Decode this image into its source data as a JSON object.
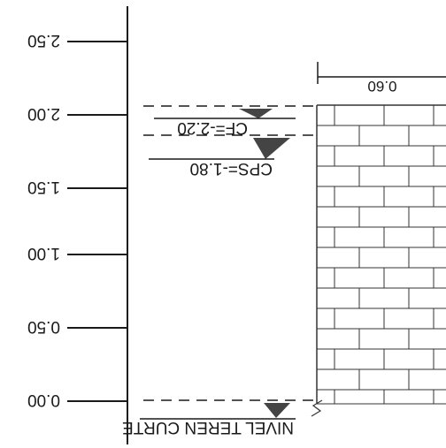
{
  "scale_labels": [
    "0.00",
    "0.50",
    "1.00",
    "1.50",
    "2.00",
    "2.50"
  ],
  "wall_width_label": "0.60",
  "markers": {
    "nivel_teren": "NIVEL TEREN CURTE",
    "cps": "CPS=-1.80",
    "cf": "CF=-2.20"
  },
  "colors": {
    "ink": "#1a1a1a",
    "marker_fill": "#444444",
    "brick_line": "#333333",
    "paper": "#ffffff"
  }
}
